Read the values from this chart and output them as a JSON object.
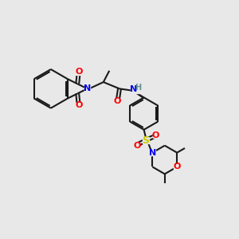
{
  "background_color": "#e8e8e8",
  "bond_color": "#1a1a1a",
  "colors": {
    "N": "#0000ee",
    "O": "#ff0000",
    "S": "#cccc00",
    "H": "#5f9090",
    "C": "#1a1a1a"
  },
  "figsize": [
    3.0,
    3.0
  ],
  "dpi": 100
}
